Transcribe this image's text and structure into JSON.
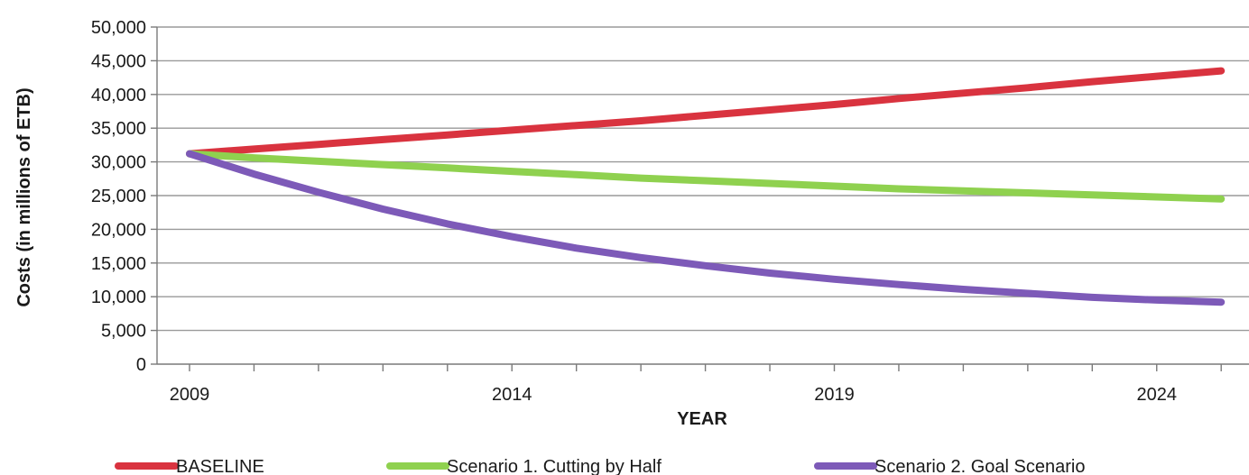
{
  "chart_data": {
    "type": "line",
    "title": "",
    "xlabel": "YEAR",
    "ylabel": "Costs (in millions of ETB)",
    "xlim": [
      2009,
      2025
    ],
    "ylim": [
      0,
      50000
    ],
    "x_ticks": [
      2009,
      2014,
      2019,
      2024
    ],
    "y_ticks": [
      0,
      5000,
      10000,
      15000,
      20000,
      25000,
      30000,
      35000,
      40000,
      45000,
      50000
    ],
    "y_tick_labels": [
      "0",
      "5,000",
      "10,000",
      "15,000",
      "20,000",
      "25,000",
      "30,000",
      "35,000",
      "40,000",
      "45,000",
      "50,000"
    ],
    "grid": true,
    "legend_position": "bottom",
    "x": [
      2009,
      2010,
      2011,
      2012,
      2013,
      2014,
      2015,
      2016,
      2017,
      2018,
      2019,
      2020,
      2021,
      2022,
      2023,
      2024,
      2025
    ],
    "series": [
      {
        "name": "BASELINE",
        "color": "#d9333f",
        "values": [
          31200,
          31900,
          32600,
          33300,
          34000,
          34700,
          35400,
          36100,
          36900,
          37700,
          38500,
          39400,
          40200,
          41000,
          41900,
          42700,
          43500
        ]
      },
      {
        "name": "Scenario 1. Cutting by Half",
        "color": "#8fd14f",
        "values": [
          31200,
          30600,
          30100,
          29600,
          29100,
          28600,
          28100,
          27600,
          27200,
          26800,
          26400,
          26000,
          25700,
          25400,
          25100,
          24800,
          24500
        ]
      },
      {
        "name": "Scenario 2.  Goal Scenario",
        "color": "#7d5ab8",
        "values": [
          31200,
          28200,
          25500,
          23000,
          20800,
          18900,
          17200,
          15800,
          14600,
          13500,
          12600,
          11800,
          11100,
          10500,
          9900,
          9500,
          9200
        ]
      }
    ]
  }
}
